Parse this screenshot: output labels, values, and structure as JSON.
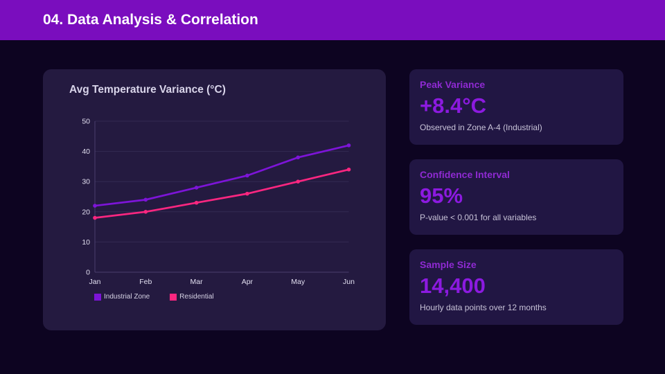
{
  "header": {
    "title": "04. Data Analysis & Correlation",
    "bg_color": "#7a0dbe"
  },
  "chart": {
    "title": "Avg Temperature Variance (°C)"
  },
  "chart_data": {
    "type": "line",
    "categories": [
      "Jan",
      "Feb",
      "Mar",
      "Apr",
      "May",
      "Jun"
    ],
    "series": [
      {
        "name": "Industrial Zone",
        "color": "#7d14d8",
        "values": [
          22,
          24,
          28,
          32,
          38,
          42
        ]
      },
      {
        "name": "Residential",
        "color": "#fb2680",
        "values": [
          18,
          20,
          23,
          26,
          30,
          34
        ]
      }
    ],
    "ylim": [
      0,
      50
    ],
    "yticks": [
      0,
      10,
      20,
      30,
      40,
      50
    ],
    "grid": true,
    "legend_position": "bottom"
  },
  "stats": [
    {
      "label": "Peak Variance",
      "value": "+8.4°C",
      "description": "Observed in Zone A-4 (Industrial)"
    },
    {
      "label": "Confidence Interval",
      "value": "95%",
      "description": "P-value < 0.001 for all variables"
    },
    {
      "label": "Sample Size",
      "value": "14,400",
      "description": "Hourly data points over 12 months"
    }
  ]
}
